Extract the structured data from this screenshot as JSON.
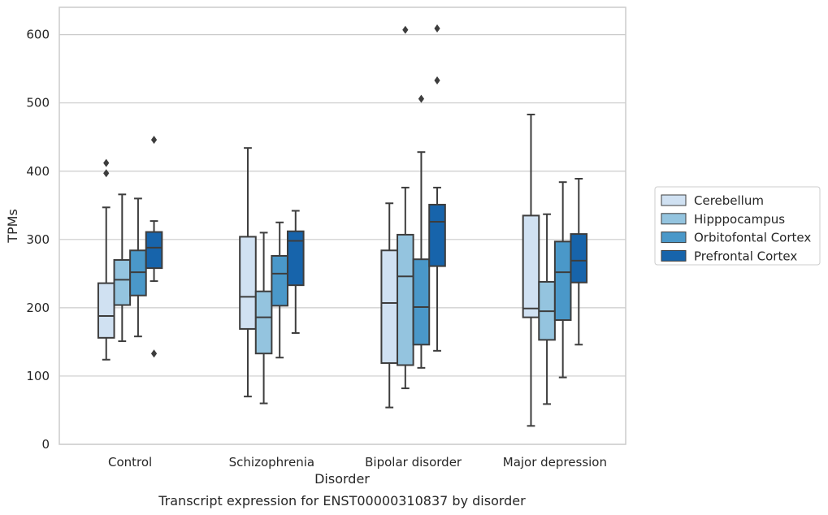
{
  "chart_data": {
    "type": "box",
    "title": "",
    "caption": "Transcript expression for ENST00000310837 by disorder",
    "xlabel": "Disorder",
    "ylabel": "TPMs",
    "ylim": [
      0,
      640
    ],
    "yticks": [
      0,
      100,
      200,
      300,
      400,
      500,
      600
    ],
    "grid": "horizontal",
    "legend_placement": "right",
    "categories": [
      "Control",
      "Schizophrenia",
      "Bipolar disorder",
      "Major depression"
    ],
    "series": [
      {
        "name": "Cerebellum",
        "color": "#d0e1f2",
        "boxes": [
          {
            "whisker_low": 124,
            "q1": 156,
            "median": 188,
            "q3": 236,
            "whisker_high": 347,
            "outliers": [
              397,
              412
            ]
          },
          {
            "whisker_low": 70,
            "q1": 169,
            "median": 216,
            "q3": 304,
            "whisker_high": 434,
            "outliers": []
          },
          {
            "whisker_low": 54,
            "q1": 119,
            "median": 207,
            "q3": 284,
            "whisker_high": 353,
            "outliers": []
          },
          {
            "whisker_low": 27,
            "q1": 186,
            "median": 199,
            "q3": 335,
            "whisker_high": 483,
            "outliers": []
          }
        ]
      },
      {
        "name": "Hipppocampus",
        "color": "#94c4df",
        "boxes": [
          {
            "whisker_low": 151,
            "q1": 204,
            "median": 241,
            "q3": 270,
            "whisker_high": 366,
            "outliers": []
          },
          {
            "whisker_low": 60,
            "q1": 133,
            "median": 186,
            "q3": 224,
            "whisker_high": 310,
            "outliers": []
          },
          {
            "whisker_low": 82,
            "q1": 116,
            "median": 246,
            "q3": 307,
            "whisker_high": 376,
            "outliers": [
              607
            ]
          },
          {
            "whisker_low": 59,
            "q1": 153,
            "median": 195,
            "q3": 238,
            "whisker_high": 337,
            "outliers": []
          }
        ]
      },
      {
        "name": "Orbitofontal Cortex",
        "color": "#4a98c9",
        "boxes": [
          {
            "whisker_low": 158,
            "q1": 218,
            "median": 252,
            "q3": 284,
            "whisker_high": 360,
            "outliers": []
          },
          {
            "whisker_low": 127,
            "q1": 203,
            "median": 250,
            "q3": 276,
            "whisker_high": 325,
            "outliers": []
          },
          {
            "whisker_low": 112,
            "q1": 146,
            "median": 201,
            "q3": 271,
            "whisker_high": 428,
            "outliers": [
              506
            ]
          },
          {
            "whisker_low": 98,
            "q1": 182,
            "median": 252,
            "q3": 297,
            "whisker_high": 384,
            "outliers": []
          }
        ]
      },
      {
        "name": "Prefrontal Cortex",
        "color": "#1764ab",
        "boxes": [
          {
            "whisker_low": 239,
            "q1": 258,
            "median": 288,
            "q3": 311,
            "whisker_high": 327,
            "outliers": [
              133,
              446
            ]
          },
          {
            "whisker_low": 163,
            "q1": 233,
            "median": 298,
            "q3": 312,
            "whisker_high": 342,
            "outliers": []
          },
          {
            "whisker_low": 137,
            "q1": 261,
            "median": 326,
            "q3": 351,
            "whisker_high": 376,
            "outliers": [
              533,
              609
            ]
          },
          {
            "whisker_low": 146,
            "q1": 237,
            "median": 269,
            "q3": 308,
            "whisker_high": 389,
            "outliers": []
          }
        ]
      }
    ]
  }
}
